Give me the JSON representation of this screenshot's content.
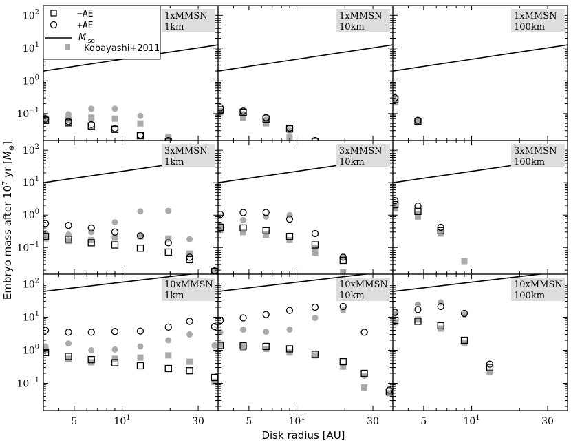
{
  "chart_data": {
    "type": "scatter",
    "xlabel": "Disk radius [AU]",
    "ylabel": "Embryo mass after 10",
    "ylabel_sup": "7",
    "ylabel_tail": " yr [",
    "ylabel_unit": "M",
    "ylabel_unit_sub": "⊕",
    "ylabel_close": "]",
    "xscale": "log",
    "yscale": "log",
    "xlim": [
      3.2,
      40
    ],
    "ylim": [
      0.015,
      200
    ],
    "x_ticks": [
      {
        "value": 5,
        "label": "5"
      },
      {
        "value": 10,
        "label": "10",
        "sup": "1"
      },
      {
        "value": 30,
        "label": "30"
      }
    ],
    "y_ticks": [
      {
        "value": 0.1,
        "base": "10",
        "exp": "−1"
      },
      {
        "value": 1,
        "base": "10",
        "exp": "0"
      },
      {
        "value": 10,
        "base": "10",
        "exp": "1"
      },
      {
        "value": 100,
        "base": "10",
        "exp": "2"
      }
    ],
    "legend": [
      {
        "marker": "open-square",
        "label": "−AE"
      },
      {
        "marker": "open-circle",
        "label": "+AE"
      },
      {
        "marker": "line",
        "label": "M",
        "label_sub": "iso"
      },
      {
        "marker": "gray-square",
        "label": "Kobayashi+2011"
      }
    ],
    "colors": {
      "open_marker": "#000000",
      "kobayashi": "#aaaaaa",
      "line": "#000000",
      "label_box": "#dddddd"
    },
    "panels": [
      {
        "row": 0,
        "col": 0,
        "label_line1": "1xMMSN",
        "label_line2": "1km",
        "iso_line": [
          [
            3.2,
            2.0
          ],
          [
            40,
            12.5
          ]
        ],
        "minus_ae": [
          [
            3.3,
            0.062
          ],
          [
            4.6,
            0.052
          ],
          [
            6.4,
            0.042
          ],
          [
            9.0,
            0.033
          ],
          [
            13.0,
            0.021
          ],
          [
            19.5,
            0.014
          ]
        ],
        "plus_ae": [
          [
            3.3,
            0.068
          ],
          [
            4.6,
            0.057
          ],
          [
            6.4,
            0.046
          ],
          [
            9.0,
            0.035
          ],
          [
            13.0,
            0.022
          ],
          [
            19.5,
            0.015
          ]
        ],
        "kob_circle": [
          [
            3.3,
            0.075
          ],
          [
            4.6,
            0.095
          ],
          [
            6.4,
            0.14
          ],
          [
            9.0,
            0.14
          ],
          [
            13.0,
            0.085
          ],
          [
            19.5,
            0.02
          ]
        ],
        "kob_square": [
          [
            3.3,
            0.06
          ],
          [
            4.6,
            0.065
          ],
          [
            6.4,
            0.075
          ],
          [
            9.0,
            0.07
          ],
          [
            13.0,
            0.05
          ],
          [
            19.5,
            0.018
          ]
        ]
      },
      {
        "row": 0,
        "col": 1,
        "label_line1": "1xMMSN",
        "label_line2": "10km",
        "iso_line": [
          [
            3.2,
            2.0
          ],
          [
            40,
            12.5
          ]
        ],
        "minus_ae": [
          [
            3.3,
            0.13
          ],
          [
            4.6,
            0.11
          ],
          [
            6.4,
            0.068
          ],
          [
            9.0,
            0.034
          ],
          [
            13.0,
            0.014
          ]
        ],
        "plus_ae": [
          [
            3.3,
            0.15
          ],
          [
            4.6,
            0.12
          ],
          [
            6.4,
            0.075
          ],
          [
            9.0,
            0.036
          ],
          [
            13.0,
            0.015
          ]
        ],
        "kob_circle": [
          [
            3.3,
            0.12
          ],
          [
            4.6,
            0.095
          ],
          [
            6.4,
            0.065
          ],
          [
            9.0,
            0.03
          ]
        ],
        "kob_square": [
          [
            3.3,
            0.11
          ],
          [
            4.6,
            0.075
          ],
          [
            6.4,
            0.05
          ],
          [
            9.0,
            0.019
          ]
        ]
      },
      {
        "row": 0,
        "col": 2,
        "label_line1": "1xMMSN",
        "label_line2": "100km",
        "iso_line": [
          [
            3.2,
            2.0
          ],
          [
            40,
            12.5
          ]
        ],
        "minus_ae": [
          [
            3.3,
            0.27
          ],
          [
            4.6,
            0.058
          ]
        ],
        "plus_ae": [
          [
            3.3,
            0.3
          ],
          [
            4.6,
            0.062
          ]
        ],
        "kob_circle": [
          [
            3.3,
            0.25
          ],
          [
            4.6,
            0.065
          ]
        ],
        "kob_square": [
          [
            3.3,
            0.22
          ],
          [
            4.6,
            0.055
          ]
        ]
      },
      {
        "row": 1,
        "col": 0,
        "label_line1": "3xMMSN",
        "label_line2": "1km",
        "iso_line": [
          [
            3.2,
            10.0
          ],
          [
            40,
            60
          ]
        ],
        "minus_ae": [
          [
            3.3,
            0.22
          ],
          [
            4.6,
            0.18
          ],
          [
            6.4,
            0.14
          ],
          [
            9.0,
            0.12
          ],
          [
            13.0,
            0.095
          ],
          [
            19.5,
            0.072
          ],
          [
            26.5,
            0.042
          ],
          [
            38.0,
            0.018
          ]
        ],
        "plus_ae": [
          [
            3.3,
            0.55
          ],
          [
            4.6,
            0.48
          ],
          [
            6.4,
            0.4
          ],
          [
            9.0,
            0.3
          ],
          [
            13.0,
            0.23
          ],
          [
            19.5,
            0.14
          ],
          [
            26.5,
            0.05
          ],
          [
            38.0,
            0.019
          ]
        ],
        "kob_circle": [
          [
            3.3,
            0.28
          ],
          [
            4.6,
            0.25
          ],
          [
            6.4,
            0.3
          ],
          [
            9.0,
            0.6
          ],
          [
            13.0,
            1.3
          ],
          [
            19.5,
            1.35
          ],
          [
            26.5,
            0.18
          ],
          [
            38.0,
            0.02
          ]
        ],
        "kob_square": [
          [
            3.3,
            0.19
          ],
          [
            4.6,
            0.16
          ],
          [
            6.4,
            0.17
          ],
          [
            9.0,
            0.2
          ],
          [
            13.0,
            0.22
          ],
          [
            19.5,
            0.19
          ],
          [
            26.5,
            0.065
          ],
          [
            38.0,
            0.018
          ]
        ]
      },
      {
        "row": 1,
        "col": 1,
        "label_line1": "3xMMSN",
        "label_line2": "10km",
        "iso_line": [
          [
            3.2,
            10.0
          ],
          [
            40,
            60
          ]
        ],
        "minus_ae": [
          [
            3.3,
            0.42
          ],
          [
            4.6,
            0.4
          ],
          [
            6.4,
            0.33
          ],
          [
            9.0,
            0.22
          ],
          [
            13.0,
            0.12
          ],
          [
            19.5,
            0.04
          ],
          [
            26.5,
            0.012
          ]
        ],
        "plus_ae": [
          [
            3.3,
            1.05
          ],
          [
            4.6,
            1.2
          ],
          [
            6.4,
            1.2
          ],
          [
            9.0,
            0.75
          ],
          [
            13.0,
            0.27
          ],
          [
            19.5,
            0.05
          ]
        ],
        "kob_circle": [
          [
            3.3,
            0.5
          ],
          [
            4.6,
            0.7
          ],
          [
            6.4,
            0.9
          ],
          [
            9.0,
            1.0
          ],
          [
            13.0,
            0.1
          ],
          [
            19.5,
            0.05
          ]
        ],
        "kob_square": [
          [
            3.3,
            0.35
          ],
          [
            4.6,
            0.3
          ],
          [
            6.4,
            0.25
          ],
          [
            9.0,
            0.17
          ],
          [
            13.0,
            0.07
          ],
          [
            19.5,
            0.017
          ]
        ]
      },
      {
        "row": 1,
        "col": 2,
        "label_line1": "3xMMSN",
        "label_line2": "100km",
        "iso_line": [
          [
            3.2,
            10.0
          ],
          [
            40,
            60
          ]
        ],
        "minus_ae": [
          [
            3.3,
            2.1
          ],
          [
            4.6,
            1.3
          ],
          [
            6.4,
            0.33
          ]
        ],
        "plus_ae": [
          [
            3.3,
            2.8
          ],
          [
            4.6,
            1.9
          ],
          [
            6.4,
            0.42
          ]
        ],
        "kob_circle": [
          [
            3.3,
            1.9
          ],
          [
            4.6,
            1.1
          ],
          [
            6.4,
            0.3
          ]
        ],
        "kob_square": [
          [
            3.3,
            1.6
          ],
          [
            4.6,
            0.9
          ],
          [
            6.4,
            0.27
          ],
          [
            9.0,
            0.038
          ]
        ]
      },
      {
        "row": 2,
        "col": 0,
        "label_line1": "10xMMSN",
        "label_line2": "1km",
        "iso_line": [
          [
            3.2,
            60
          ],
          [
            40,
            250
          ]
        ],
        "minus_ae": [
          [
            3.3,
            0.85
          ],
          [
            4.6,
            0.65
          ],
          [
            6.4,
            0.52
          ],
          [
            9.0,
            0.42
          ],
          [
            13.0,
            0.34
          ],
          [
            19.5,
            0.28
          ],
          [
            26.5,
            0.24
          ],
          [
            38.0,
            0.15
          ]
        ],
        "plus_ae": [
          [
            3.3,
            4.0
          ],
          [
            4.6,
            3.5
          ],
          [
            6.4,
            3.5
          ],
          [
            9.0,
            3.7
          ],
          [
            13.0,
            3.8
          ],
          [
            19.5,
            5.0
          ],
          [
            26.5,
            7.5
          ],
          [
            38.0,
            5.2
          ]
        ],
        "kob_circle": [
          [
            3.3,
            1.3
          ],
          [
            4.6,
            1.6
          ],
          [
            6.4,
            1.0
          ],
          [
            9.0,
            1.05
          ],
          [
            13.0,
            1.3
          ],
          [
            19.5,
            2.0
          ],
          [
            26.5,
            3.0
          ],
          [
            38.0,
            1.4
          ]
        ],
        "kob_square": [
          [
            3.3,
            1.0
          ],
          [
            4.6,
            0.55
          ],
          [
            6.4,
            0.43
          ],
          [
            9.0,
            0.55
          ],
          [
            13.0,
            0.6
          ],
          [
            19.5,
            0.7
          ],
          [
            26.5,
            0.45
          ],
          [
            38.0,
            0.11
          ]
        ]
      },
      {
        "row": 2,
        "col": 1,
        "label_line1": "10xMMSN",
        "label_line2": "10km",
        "iso_line": [
          [
            3.2,
            60
          ],
          [
            40,
            250
          ]
        ],
        "minus_ae": [
          [
            3.3,
            1.4
          ],
          [
            4.6,
            1.35
          ],
          [
            6.4,
            1.3
          ],
          [
            9.0,
            1.1
          ],
          [
            13.0,
            0.75
          ],
          [
            19.5,
            0.45
          ],
          [
            26.5,
            0.2
          ],
          [
            38.0,
            0.055
          ]
        ],
        "plus_ae": [
          [
            3.3,
            8.0
          ],
          [
            4.6,
            9.5
          ],
          [
            6.4,
            12.0
          ],
          [
            9.0,
            16.0
          ],
          [
            13.0,
            20.0
          ],
          [
            19.5,
            21.0
          ],
          [
            26.5,
            3.5
          ],
          [
            38.0,
            0.062
          ]
        ],
        "kob_circle": [
          [
            3.3,
            3.5
          ],
          [
            4.6,
            4.2
          ],
          [
            6.4,
            3.6
          ],
          [
            9.0,
            4.2
          ],
          [
            13.0,
            9.5
          ],
          [
            19.5,
            16.0
          ],
          [
            26.5,
            0.17
          ]
        ],
        "kob_square": [
          [
            3.3,
            1.5
          ],
          [
            4.6,
            1.2
          ],
          [
            6.4,
            1.1
          ],
          [
            9.0,
            0.85
          ],
          [
            13.0,
            0.7
          ],
          [
            19.5,
            0.32
          ],
          [
            26.5,
            0.075
          ],
          [
            38.0,
            0.05
          ]
        ]
      },
      {
        "row": 2,
        "col": 2,
        "label_line1": "10xMMSN",
        "label_line2": "100km",
        "iso_line": [
          [
            3.2,
            60
          ],
          [
            40,
            250
          ]
        ],
        "minus_ae": [
          [
            3.3,
            8.0
          ],
          [
            4.6,
            7.5
          ],
          [
            6.4,
            5.5
          ],
          [
            9.0,
            2.0
          ],
          [
            13.0,
            0.3
          ]
        ],
        "plus_ae": [
          [
            3.3,
            14.0
          ],
          [
            4.6,
            17.0
          ],
          [
            6.4,
            21.0
          ],
          [
            9.0,
            13.0
          ],
          [
            13.0,
            0.38
          ]
        ],
        "kob_circle": [
          [
            3.3,
            13.0
          ],
          [
            4.6,
            24.0
          ],
          [
            6.4,
            28.0
          ],
          [
            9.0,
            12.0
          ]
        ],
        "kob_square": [
          [
            3.3,
            7.0
          ],
          [
            4.6,
            8.5
          ],
          [
            6.4,
            4.5
          ],
          [
            9.0,
            1.6
          ],
          [
            13.0,
            0.22
          ]
        ]
      }
    ]
  }
}
